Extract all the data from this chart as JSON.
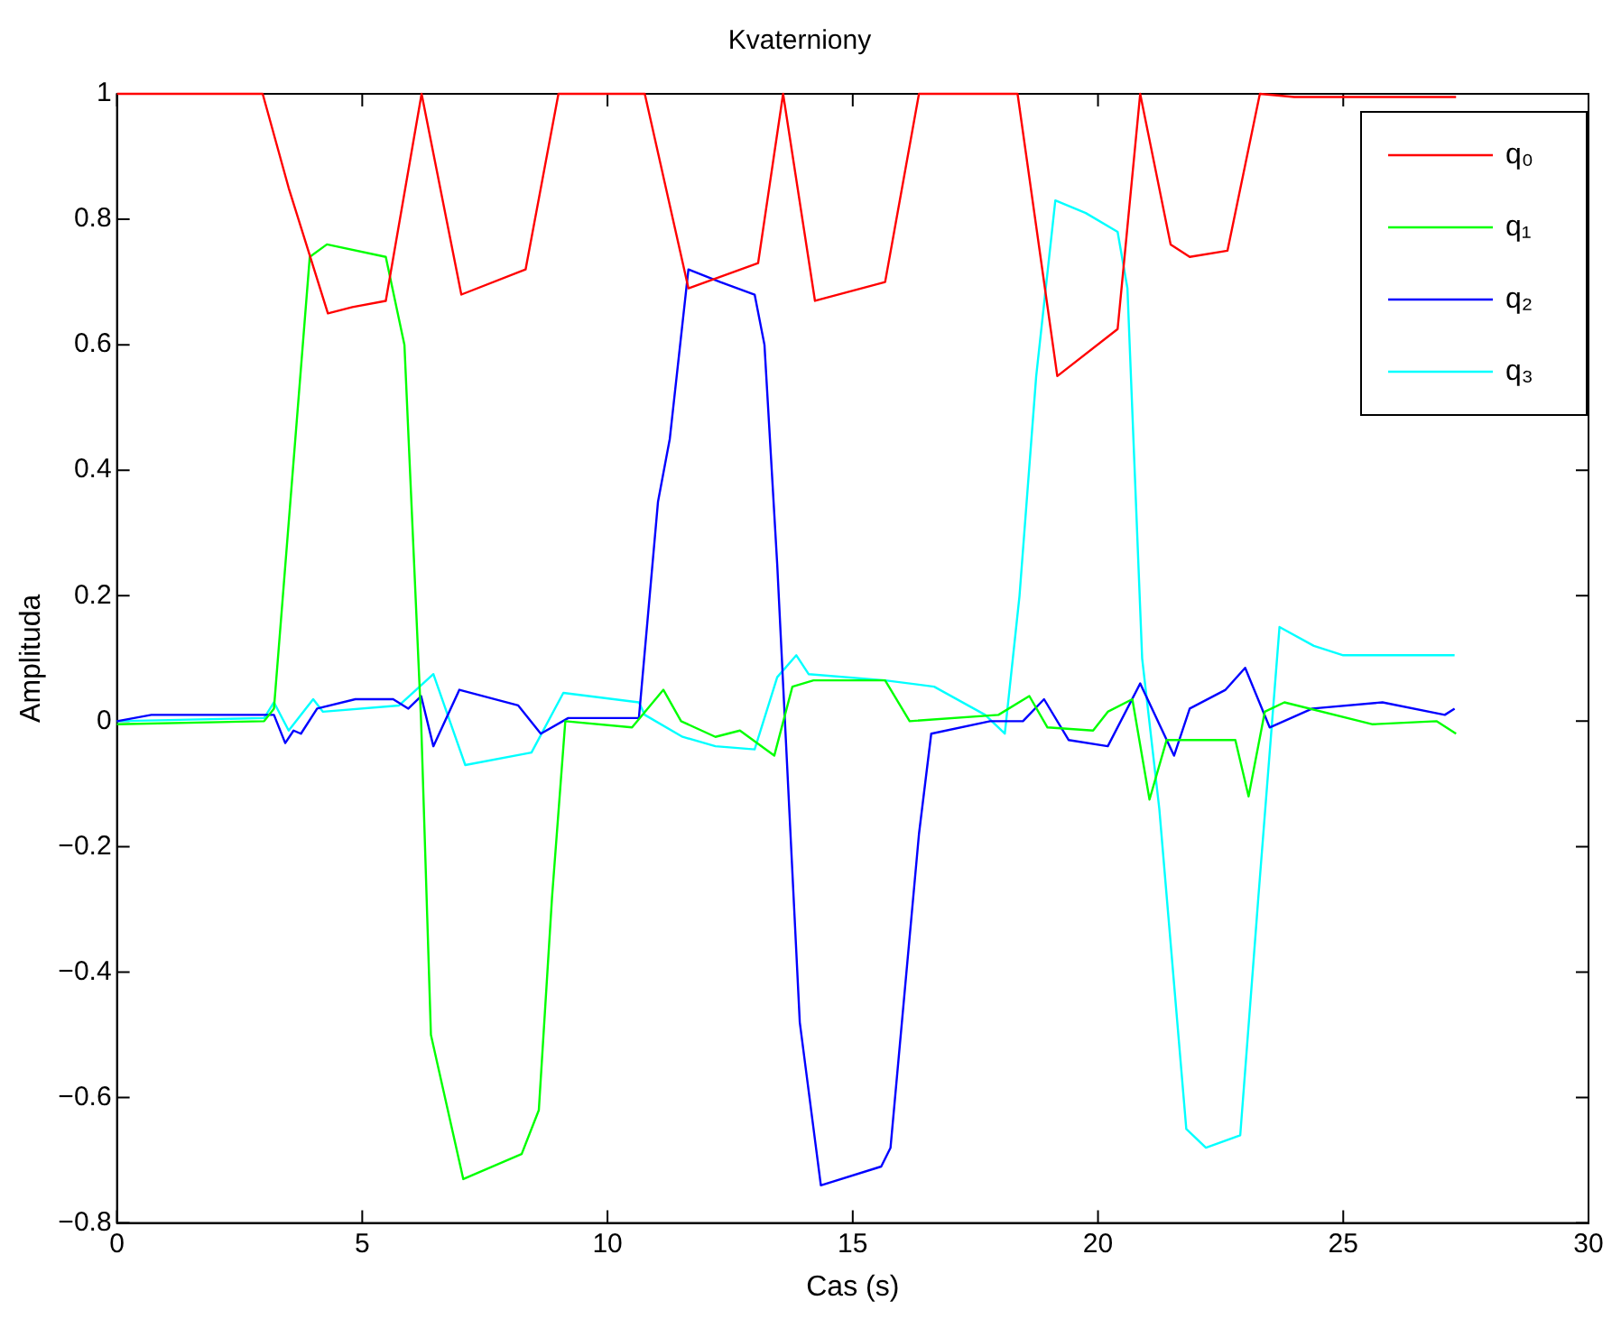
{
  "chart_data": {
    "type": "line",
    "title": "Kvaterniony",
    "xlabel": "Cas (s)",
    "ylabel": "Amplituda",
    "xlim": [
      0,
      30
    ],
    "xticks": [
      0,
      5,
      10,
      15,
      20,
      25,
      30
    ],
    "ylim": [
      -0.8,
      1
    ],
    "yticks": [
      {
        "value": -0.8,
        "label": "−0.8"
      },
      {
        "value": -0.6,
        "label": "−0.6"
      },
      {
        "value": -0.4,
        "label": "−0.4"
      },
      {
        "value": -0.2,
        "label": "−0.2"
      },
      0,
      0.2,
      0.4,
      0.6,
      0.8,
      1
    ],
    "grid": false,
    "legend": "top right",
    "marker": "none",
    "line_style": "solid",
    "series": [
      {
        "name": "q₀",
        "color": "#ff0000",
        "x": [
          0,
          2.97,
          3.5,
          4.3,
          4.8,
          5.48,
          6.21,
          7.02,
          8.33,
          9.0,
          10.76,
          11.65,
          13.07,
          13.58,
          14.23,
          15.66,
          16.35,
          18.36,
          19.17,
          20.4,
          20.86,
          21.48,
          21.87,
          22.64,
          23.3,
          24.0,
          27.3
        ],
        "values": [
          1,
          1,
          0.85,
          0.65,
          0.66,
          0.67,
          1,
          0.68,
          0.72,
          1,
          1,
          0.69,
          0.73,
          1,
          0.67,
          0.7,
          1,
          1,
          0.55,
          0.625,
          1,
          0.76,
          0.74,
          0.75,
          1,
          0.995,
          0.995
        ]
      },
      {
        "name": "q₁",
        "color": "#00ff00",
        "x": [
          0,
          3.0,
          3.2,
          3.93,
          4.28,
          5.48,
          5.86,
          6.2,
          6.4,
          7.06,
          8.25,
          8.6,
          8.87,
          9.14,
          10.5,
          11.14,
          11.5,
          12.2,
          12.7,
          13.4,
          13.77,
          14.2,
          15.66,
          16.16,
          17.97,
          18.6,
          18.97,
          19.9,
          20.2,
          20.7,
          21.05,
          21.4,
          22.8,
          23.07,
          23.4,
          23.8,
          25.6,
          26.9,
          27.3
        ],
        "values": [
          -0.005,
          0,
          0.02,
          0.74,
          0.76,
          0.74,
          0.6,
          0,
          -0.5,
          -0.73,
          -0.69,
          -0.62,
          -0.28,
          0,
          -0.01,
          0.05,
          0,
          -0.025,
          -0.015,
          -0.055,
          0.055,
          0.065,
          0.065,
          0,
          0.01,
          0.04,
          -0.01,
          -0.015,
          0.015,
          0.035,
          -0.125,
          -0.03,
          -0.03,
          -0.12,
          0.015,
          0.03,
          -0.005,
          0,
          -0.02
        ]
      },
      {
        "name": "q₂",
        "color": "#0000ff",
        "x": [
          0,
          0.7,
          3.2,
          3.43,
          3.6,
          3.75,
          4.08,
          4.86,
          5.63,
          5.94,
          6.2,
          6.45,
          6.98,
          8.18,
          8.64,
          9.2,
          10.64,
          11.03,
          11.27,
          11.65,
          12.3,
          13.0,
          13.2,
          13.46,
          13.92,
          14.35,
          15.58,
          15.77,
          16.35,
          16.6,
          17.8,
          18.47,
          18.9,
          19.4,
          20.2,
          20.86,
          21.55,
          21.87,
          22.6,
          23.0,
          23.5,
          24.37,
          25.8,
          27.07,
          27.27
        ],
        "values": [
          0,
          0.01,
          0.01,
          -0.035,
          -0.015,
          -0.02,
          0.02,
          0.035,
          0.035,
          0.02,
          0.04,
          -0.04,
          0.05,
          0.025,
          -0.02,
          0.005,
          0.005,
          0.35,
          0.45,
          0.72,
          0.7,
          0.68,
          0.6,
          0.25,
          -0.48,
          -0.74,
          -0.71,
          -0.68,
          -0.18,
          -0.02,
          0,
          0,
          0.035,
          -0.03,
          -0.04,
          0.06,
          -0.055,
          0.02,
          0.05,
          0.085,
          -0.01,
          0.02,
          0.03,
          0.01,
          0.02
        ]
      },
      {
        "name": "q₃",
        "color": "#00ffff",
        "x": [
          0,
          3.0,
          3.2,
          3.5,
          4.0,
          4.2,
          5.75,
          6.45,
          7.1,
          8.45,
          9.1,
          10.64,
          10.76,
          11.53,
          12.2,
          13.0,
          13.46,
          13.85,
          14.1,
          15.66,
          16.66,
          17.7,
          18.1,
          18.4,
          18.74,
          19.13,
          19.75,
          20.4,
          20.6,
          20.9,
          21.25,
          21.8,
          22.2,
          22.9,
          23.27,
          23.7,
          24.4,
          25.0,
          27.27
        ],
        "values": [
          0,
          0.005,
          0.03,
          -0.015,
          0.035,
          0.015,
          0.025,
          0.075,
          -0.07,
          -0.05,
          0.045,
          0.03,
          0.01,
          -0.025,
          -0.04,
          -0.045,
          0.07,
          0.105,
          0.075,
          0.065,
          0.055,
          0.01,
          -0.02,
          0.2,
          0.55,
          0.83,
          0.81,
          0.78,
          0.69,
          0.1,
          -0.14,
          -0.65,
          -0.68,
          -0.66,
          -0.28,
          0.15,
          0.12,
          0.105,
          0.105
        ]
      }
    ]
  }
}
